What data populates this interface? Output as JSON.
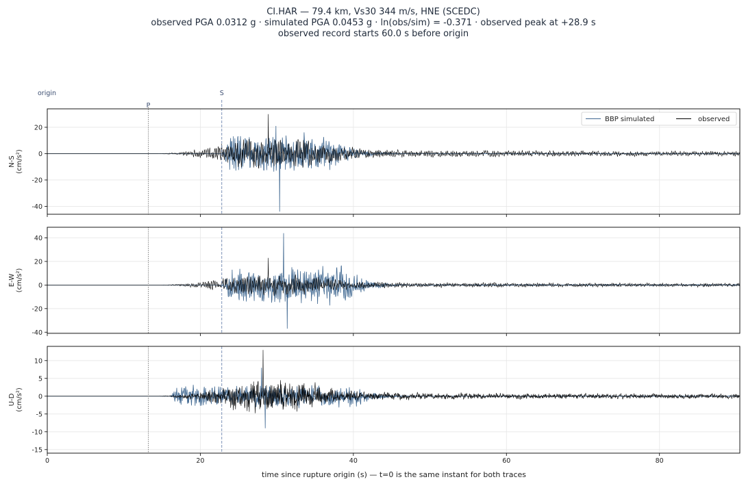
{
  "title": {
    "line1": "CI.HAR  —  79.4 km, Vs30 344 m/s, HNE (SCEDC)",
    "line2": "observed PGA 0.0312 g   ·   simulated PGA 0.0453 g   ·   ln(obs/sim) = -0.371   ·   observed peak at +28.9 s",
    "line3": "observed record starts 60.0 s before origin"
  },
  "xlabel": "time since rupture origin (s)   —   t=0 is the same instant for both traces",
  "markers": {
    "origin": {
      "label": "origin",
      "t": 0
    },
    "p": {
      "label": "P",
      "t": 13.2
    },
    "s": {
      "label": "S",
      "t": 22.8
    }
  },
  "legend": {
    "simulated": "BBP simulated",
    "observed": "observed",
    "placement": "top-right"
  },
  "colors": {
    "simulated": "#3f6790",
    "observed": "#000000",
    "p_marker": "#777777",
    "s_marker": "#7b92b8",
    "grid": "#e6e6e6"
  },
  "chart_data": [
    {
      "type": "line",
      "component": "N-S",
      "ylabel": "N-S\n(cm/s²)",
      "xlim": [
        0,
        90.5
      ],
      "ylim": [
        -46,
        34
      ],
      "xticks": [
        0,
        20,
        40,
        60,
        80
      ],
      "yticks": [
        20,
        0,
        -20,
        -40
      ],
      "series": [
        {
          "name": "BBP simulated",
          "key": "simulated",
          "onset": 22.8,
          "end": 37.0,
          "peak": 21,
          "min_peak": -44,
          "freq": 5.5,
          "seed": 11
        },
        {
          "name": "observed",
          "key": "observed",
          "onset": 14.5,
          "peak": 30,
          "peak_t": 28.9,
          "coda": 2.5,
          "freq": 4.5,
          "seed": 23
        }
      ]
    },
    {
      "type": "line",
      "component": "E-W",
      "ylabel": "E-W\n(cm/s²)",
      "xlim": [
        0,
        90.5
      ],
      "ylim": [
        -41,
        49
      ],
      "xticks": [
        0,
        20,
        40,
        60,
        80
      ],
      "yticks": [
        40,
        20,
        0,
        -20,
        -40
      ],
      "series": [
        {
          "name": "BBP simulated",
          "key": "simulated",
          "onset": 22.8,
          "end": 39.0,
          "peak": 44,
          "min_peak": -37,
          "freq": 5.0,
          "seed": 37
        },
        {
          "name": "observed",
          "key": "observed",
          "onset": 14.5,
          "peak": 23,
          "peak_t": 28.9,
          "coda": 2.0,
          "freq": 4.5,
          "seed": 41
        }
      ]
    },
    {
      "type": "line",
      "component": "U-D",
      "ylabel": "U-D\n(cm/s²)",
      "xlim": [
        0,
        90.5
      ],
      "ylim": [
        -16,
        14
      ],
      "xticks": [
        0,
        20,
        40,
        60,
        80
      ],
      "yticks": [
        10,
        5,
        0,
        -5,
        -10,
        -15
      ],
      "series": [
        {
          "name": "BBP simulated",
          "key": "simulated",
          "onset": 16.0,
          "end": 40.0,
          "peak": 8,
          "min_peak": -9,
          "freq": 6.0,
          "seed": 53
        },
        {
          "name": "observed",
          "key": "observed",
          "onset": 14.5,
          "peak": 13,
          "peak_t": 28.2,
          "coda": 0.8,
          "freq": 7.0,
          "seed": 67
        }
      ]
    }
  ]
}
